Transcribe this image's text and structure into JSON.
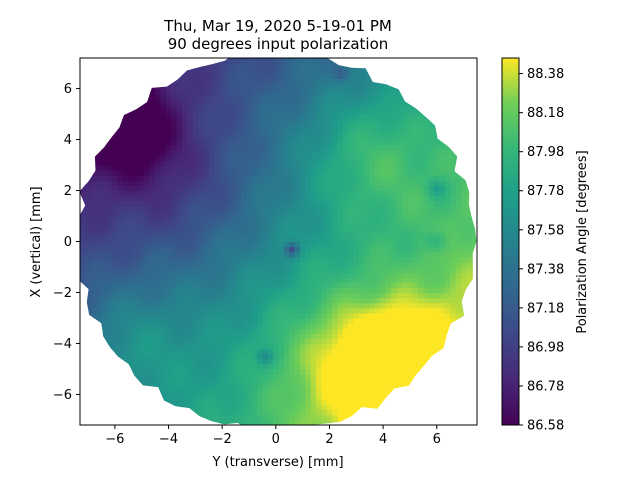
{
  "chart_data": {
    "type": "heatmap",
    "title": "Thu, Mar 19, 2020 5-19-01 PM",
    "subtitle": "90 degrees input polarization",
    "xlabel": "Y (transverse) [mm]",
    "ylabel": "X (vertical) [mm]",
    "xlim": [
      -7.3,
      7.5
    ],
    "ylim": [
      -7.2,
      7.2
    ],
    "x_ticks": [
      -6,
      -4,
      -2,
      0,
      2,
      4,
      6
    ],
    "y_ticks": [
      6,
      4,
      2,
      0,
      -2,
      -4,
      -6
    ],
    "aperture_radius_mm": 7.4,
    "colorbar": {
      "label": "Polarization Angle [degrees]",
      "min": 86.58,
      "max": 88.46,
      "ticks": [
        "88.38",
        "88.18",
        "87.98",
        "87.78",
        "87.58",
        "87.38",
        "87.18",
        "86.98",
        "86.78",
        "86.58"
      ],
      "colormap": "viridis"
    },
    "field_model": {
      "base": 87.6,
      "gradient": [
        {
          "coef": 0.08,
          "along": "y"
        },
        {
          "coef": -0.06,
          "along": "x"
        }
      ],
      "features": [
        {
          "x": -5.5,
          "y": 4.4,
          "amp": -0.55,
          "sigma": 1.3
        },
        {
          "x": -3.5,
          "y": 2.0,
          "amp": -0.25,
          "sigma": 2.0
        },
        {
          "x": 4.5,
          "y": -5.0,
          "amp": 0.75,
          "sigma": 1.5
        },
        {
          "x": 2.5,
          "y": -4.5,
          "amp": 0.3,
          "sigma": 2.0
        },
        {
          "x": 3.5,
          "y": 3.5,
          "amp": 0.35,
          "sigma": 1.8
        },
        {
          "x": -5.5,
          "y": -4.0,
          "amp": 0.25,
          "sigma": 1.6
        },
        {
          "x": 0.6,
          "y": -0.3,
          "amp": -0.6,
          "sigma": 0.18
        },
        {
          "x": -0.4,
          "y": -4.5,
          "amp": -0.3,
          "sigma": 0.2
        },
        {
          "x": 6.0,
          "y": 2.1,
          "amp": -0.25,
          "sigma": 0.25
        },
        {
          "x": 2.4,
          "y": 6.6,
          "amp": -0.25,
          "sigma": 0.2
        },
        {
          "x": 6.0,
          "y": 0.0,
          "amp": -0.2,
          "sigma": 0.3
        }
      ]
    }
  }
}
